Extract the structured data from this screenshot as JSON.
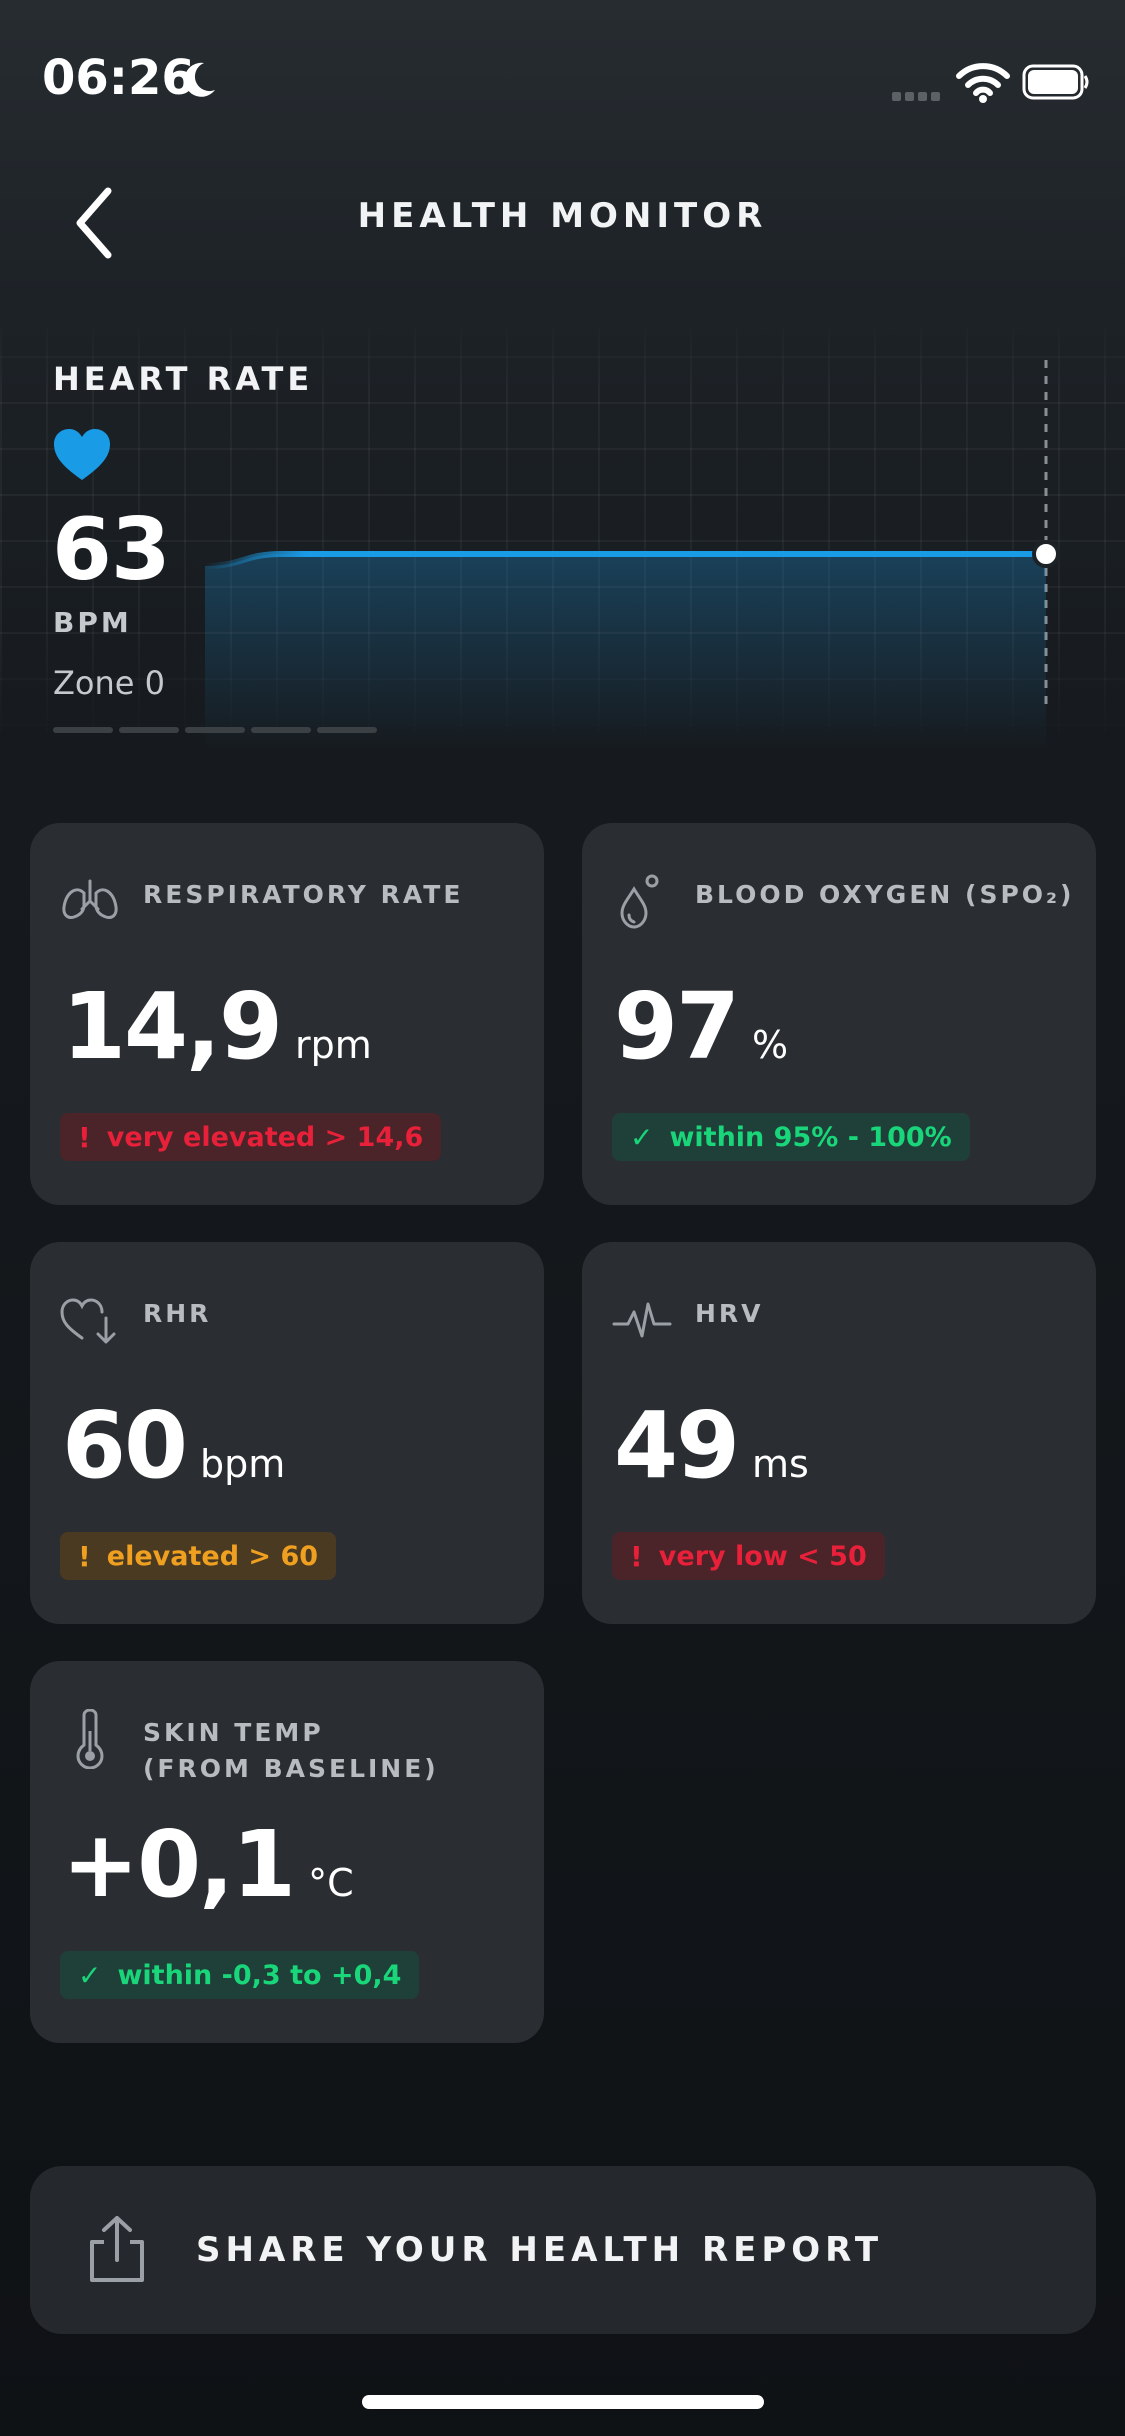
{
  "status_bar": {
    "time": "06:26",
    "icons": [
      "moon-icon",
      "cellular-signal-icon",
      "wifi-icon",
      "battery-icon"
    ]
  },
  "header": {
    "title": "HEALTH MONITOR",
    "back_icon": "chevron-left-icon"
  },
  "heart_rate": {
    "title": "HEART RATE",
    "value": "63",
    "unit": "BPM",
    "zone": "Zone 0",
    "zone_segments": 5,
    "accent_color": "#1a9be6",
    "trend": [
      62,
      63,
      63,
      63,
      63,
      63,
      63,
      63,
      63,
      63,
      63,
      63
    ]
  },
  "metrics": [
    {
      "label": "RESPIRATORY RATE",
      "icon": "lungs-icon",
      "value": "14,9",
      "unit": "rpm",
      "badge_mark": "!",
      "badge": "very elevated > 14,6",
      "status": "red"
    },
    {
      "label": "BLOOD OXYGEN (SPO₂)",
      "icon": "blood-drop-icon",
      "value": "97",
      "unit": "%",
      "badge_mark": "✓",
      "badge": "within 95% - 100%",
      "status": "green"
    },
    {
      "label": "RHR",
      "icon": "heart-down-arrow-icon",
      "value": "60",
      "unit": "bpm",
      "badge_mark": "!",
      "badge": "elevated > 60",
      "status": "orange"
    },
    {
      "label": "HRV",
      "icon": "pulse-wave-icon",
      "value": "49",
      "unit": "ms",
      "badge_mark": "!",
      "badge": "very low < 50",
      "status": "red"
    },
    {
      "label_line1": "SKIN TEMP",
      "label_line2": "(FROM BASELINE)",
      "icon": "thermometer-icon",
      "value": "+0,1",
      "unit": "°C",
      "badge_mark": "✓",
      "badge": "within -0,3 to +0,4",
      "status": "green"
    }
  ],
  "share": {
    "label": "SHARE YOUR HEALTH REPORT",
    "icon": "share-icon"
  },
  "colors": {
    "card_bg": "#2a2e32",
    "red": "#e8203a",
    "orange": "#f0a020",
    "green": "#19d67a"
  }
}
